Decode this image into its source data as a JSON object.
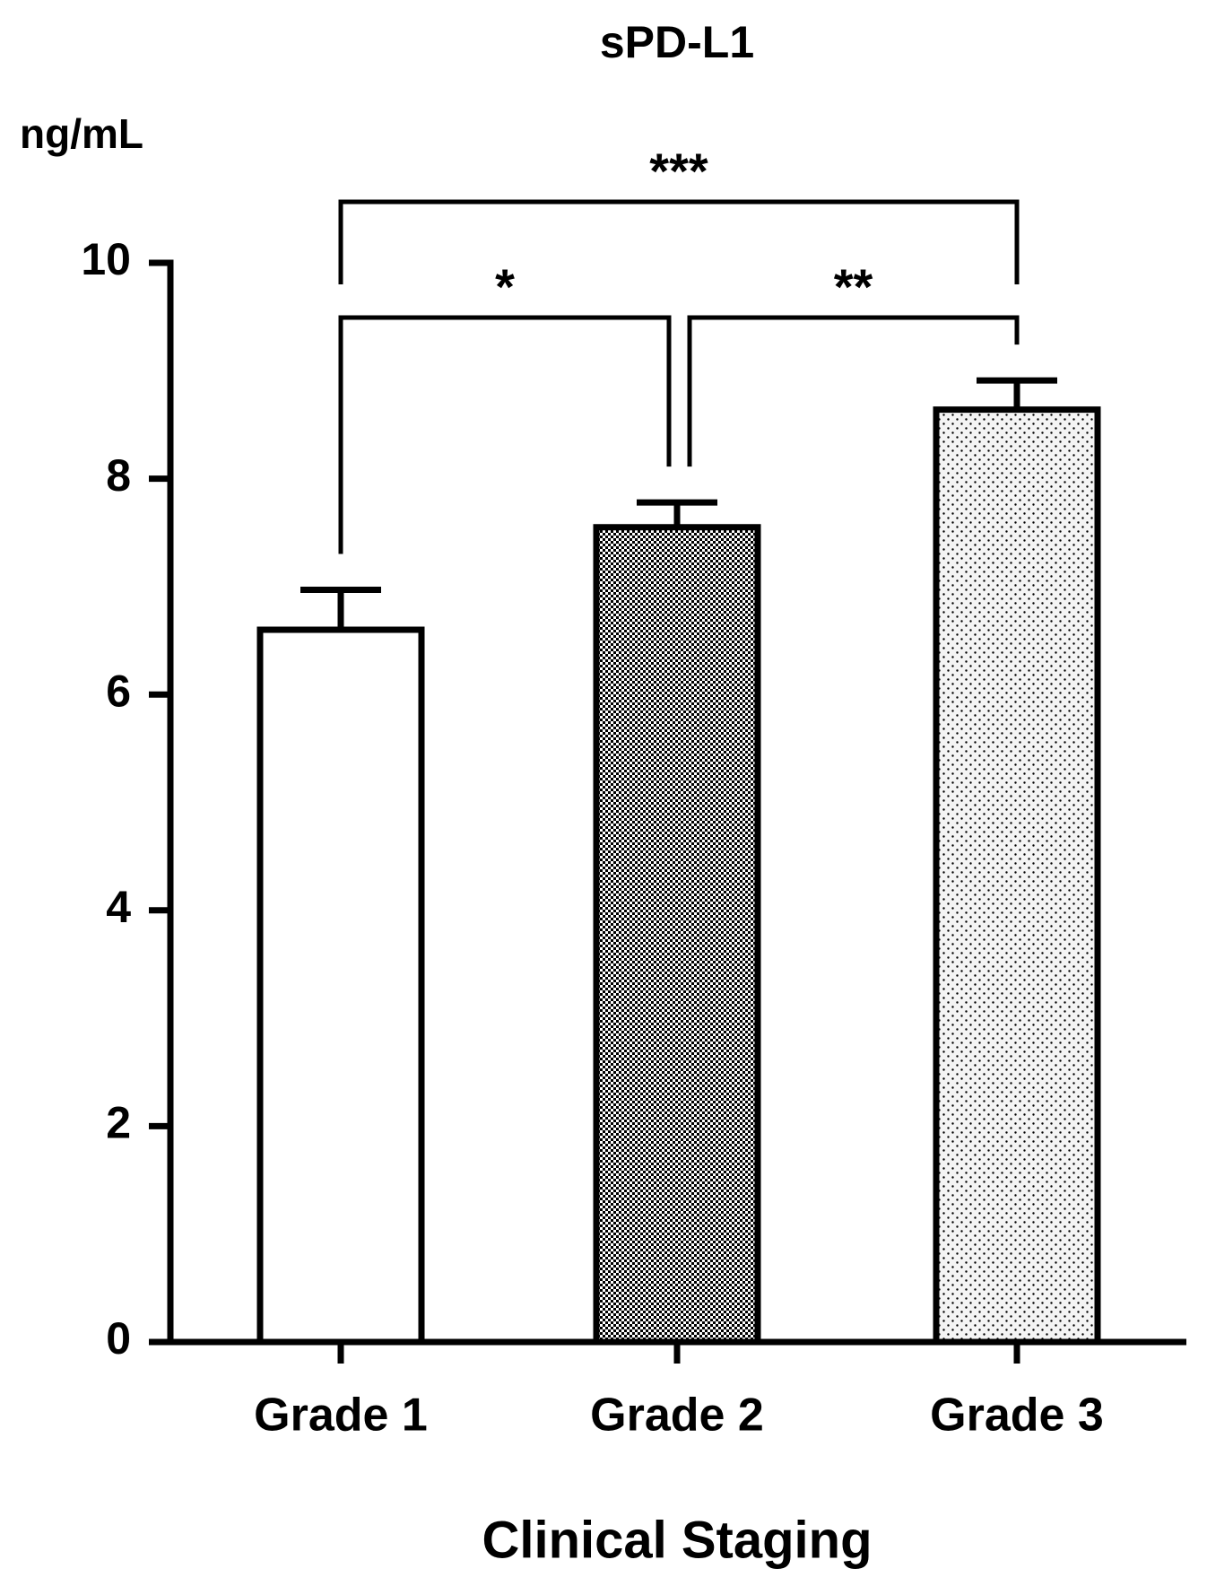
{
  "chart_data": {
    "type": "bar",
    "title": "sPD-L1",
    "y_label": "ng/mL",
    "x_label": "Clinical Staging",
    "categories": [
      "Grade 1",
      "Grade 2",
      "Grade 3"
    ],
    "values": [
      6.6,
      7.55,
      8.64
    ],
    "errors": [
      0.37,
      0.23,
      0.27
    ],
    "fills": [
      "white",
      "checker",
      "dots"
    ],
    "color": "#000000",
    "ylim": [
      0,
      10
    ],
    "yticks": [
      0,
      2,
      4,
      6,
      8,
      10
    ],
    "grid": false,
    "comparisons": [
      {
        "from": 0,
        "to": 2,
        "label": "***"
      },
      {
        "from": 0,
        "to": 1,
        "label": "*"
      },
      {
        "from": 1,
        "to": 2,
        "label": "**"
      }
    ]
  }
}
